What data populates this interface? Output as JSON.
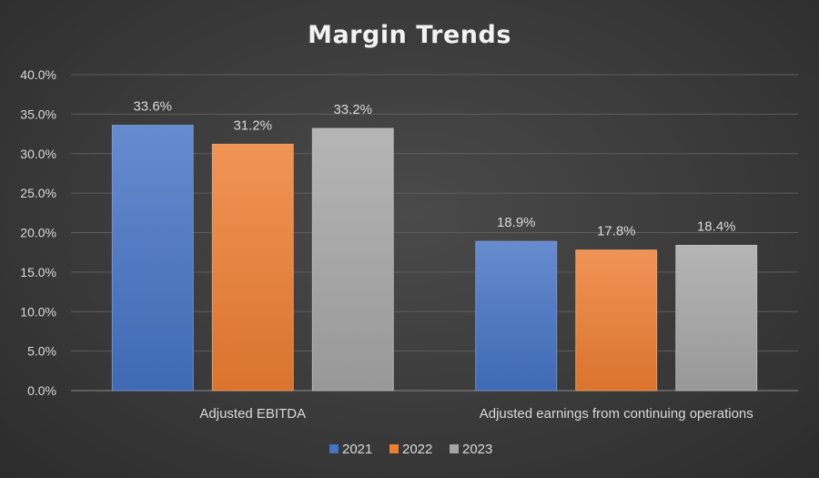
{
  "chart_data": {
    "type": "bar",
    "title": "Margin Trends",
    "categories": [
      "Adjusted EBITDA",
      "Adjusted earnings from continuing operations"
    ],
    "series": [
      {
        "name": "2021",
        "values": [
          33.6,
          18.9
        ],
        "labels": [
          "33.6%",
          "18.9%"
        ],
        "color": "#4472C4"
      },
      {
        "name": "2022",
        "values": [
          31.2,
          17.8
        ],
        "labels": [
          "31.2%",
          "17.8%"
        ],
        "color": "#ED7D31"
      },
      {
        "name": "2023",
        "values": [
          33.2,
          18.4
        ],
        "labels": [
          "33.2%",
          "18.4%"
        ],
        "color": "#A5A5A5"
      }
    ],
    "ylim": [
      0,
      40
    ],
    "yticks": [
      0,
      5,
      10,
      15,
      20,
      25,
      30,
      35,
      40
    ],
    "ytick_labels": [
      "0.0%",
      "5.0%",
      "10.0%",
      "15.0%",
      "20.0%",
      "25.0%",
      "30.0%",
      "35.0%",
      "40.0%"
    ],
    "xlabel": "",
    "ylabel": "",
    "grid": true,
    "legend_position": "bottom"
  }
}
